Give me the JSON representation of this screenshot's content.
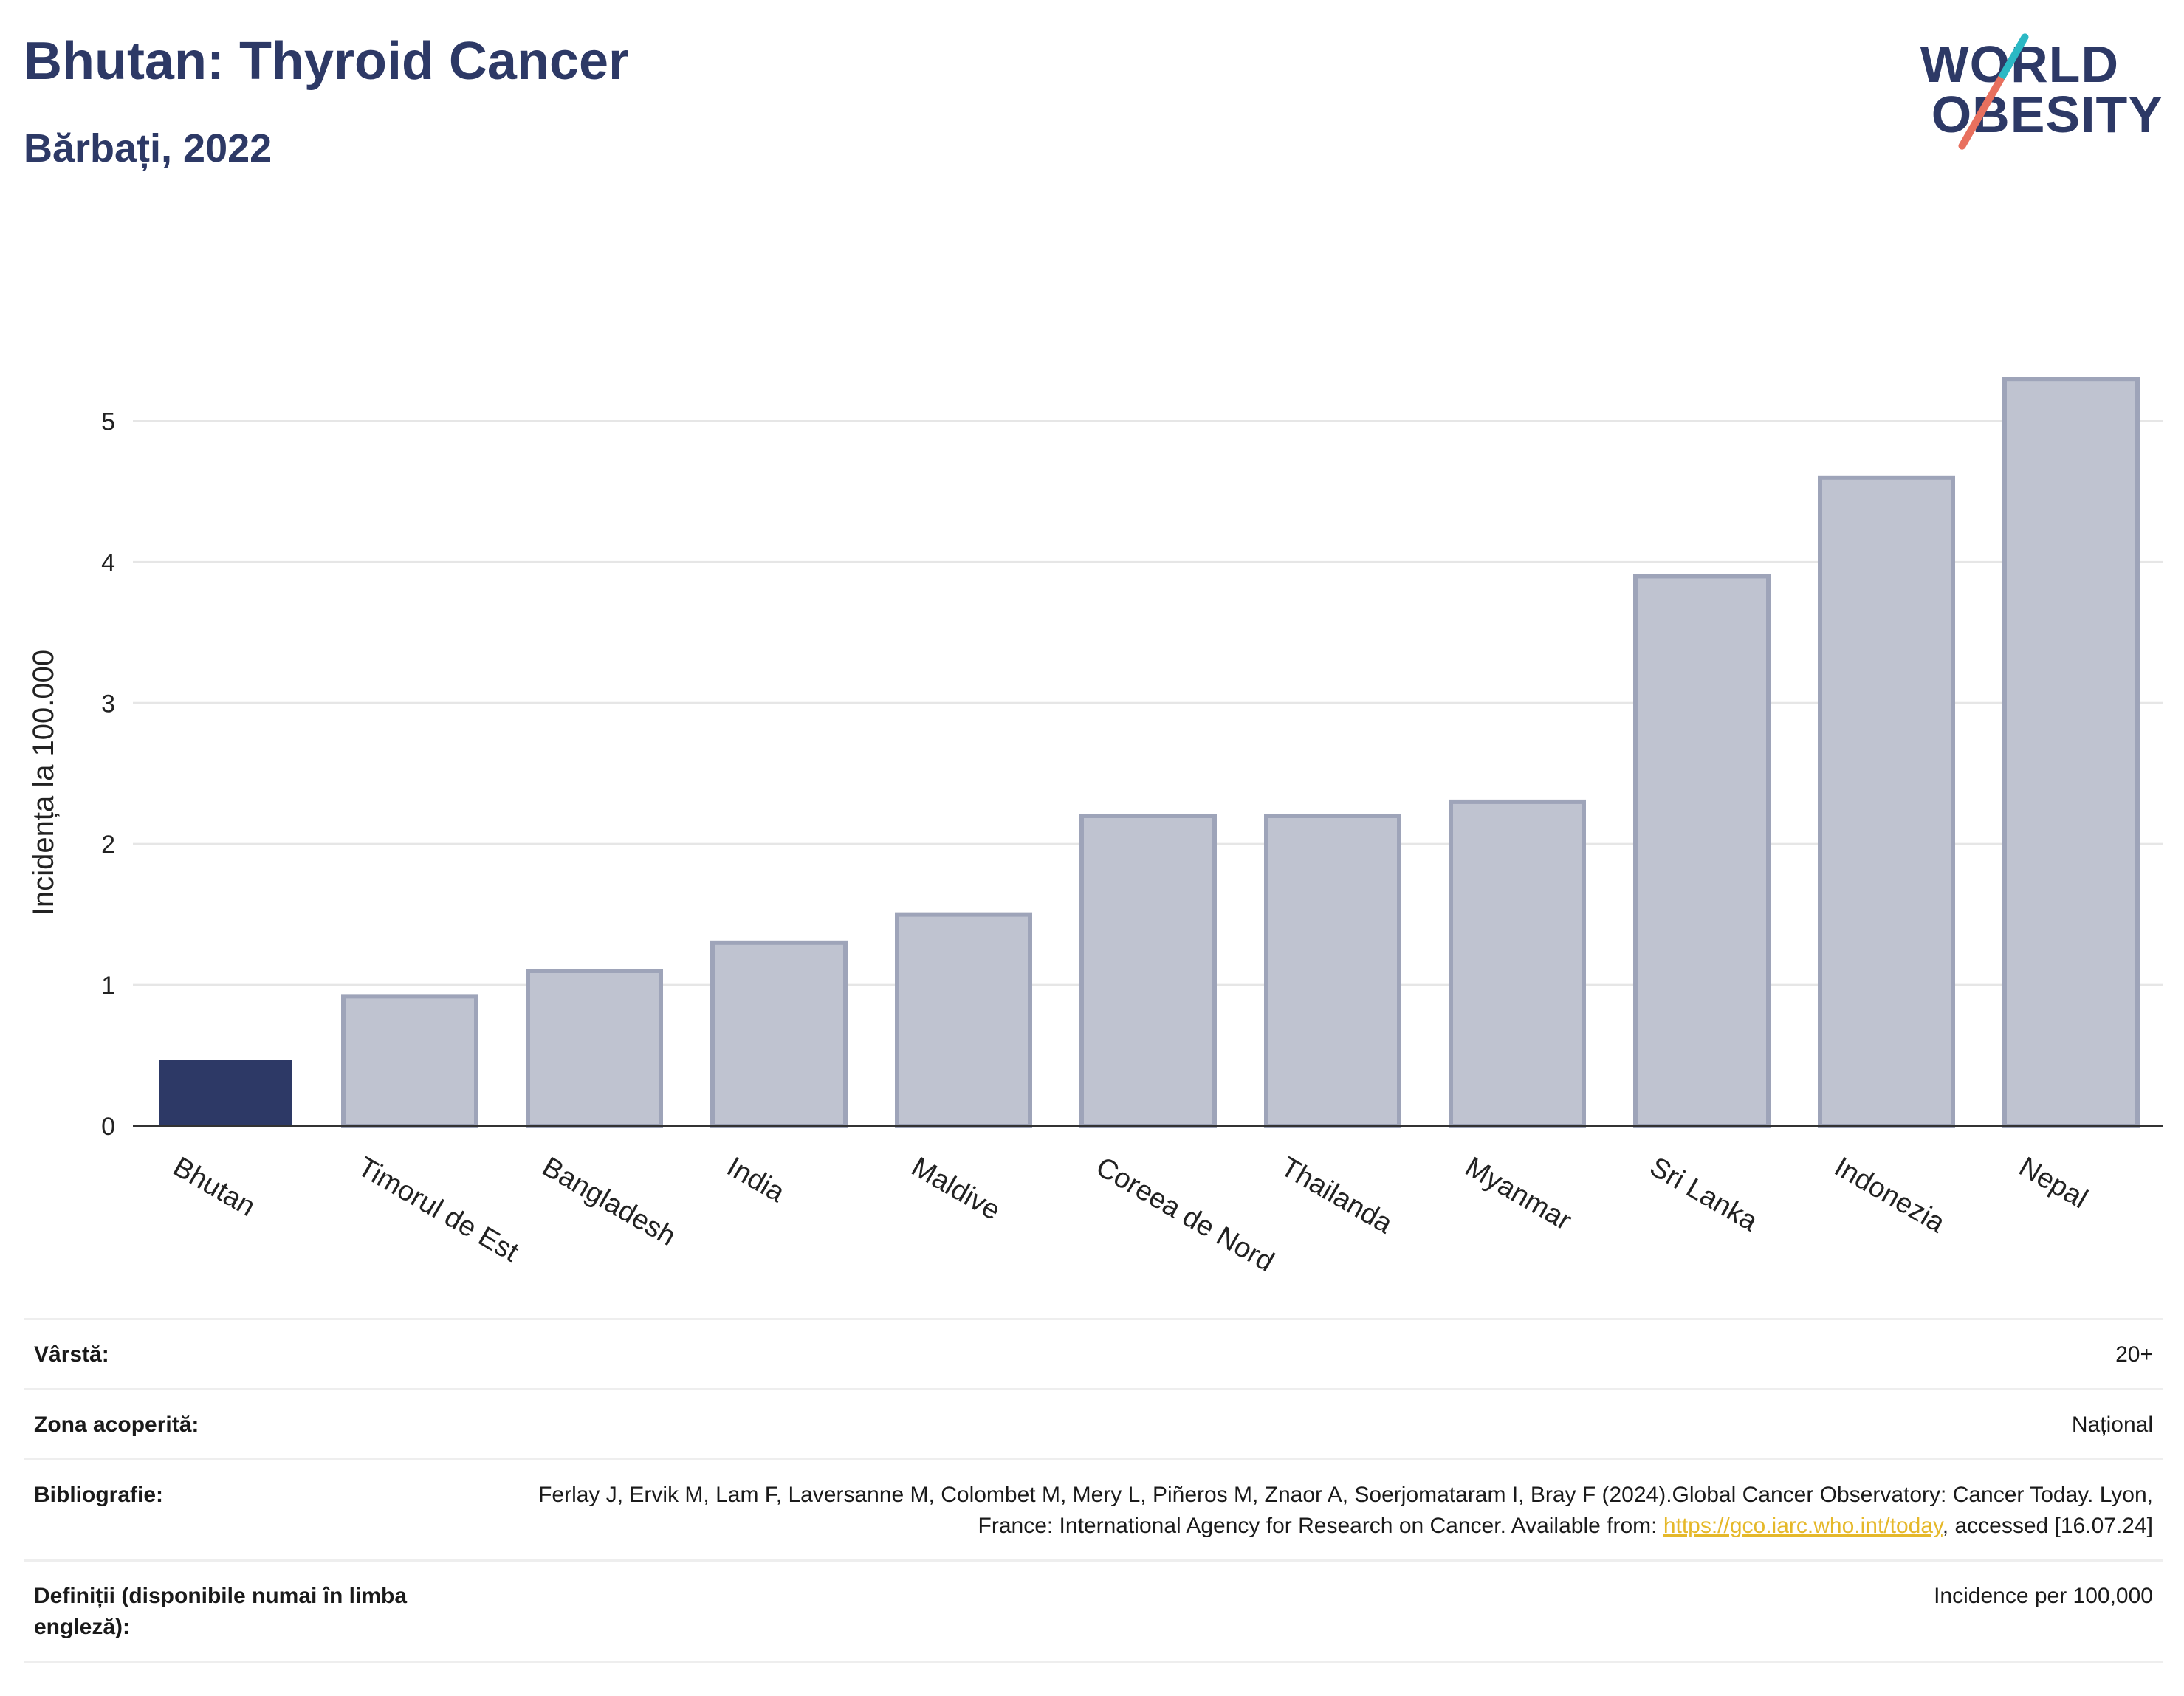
{
  "header": {
    "title": "Bhutan: Thyroid Cancer",
    "subtitle": "Bărbați, 2022"
  },
  "logo": {
    "line1": "WORLD",
    "line2": "OBESITY",
    "colors": {
      "text": "#2d3966",
      "accent_top": "#2bb8c4",
      "accent_bottom": "#e8705e"
    }
  },
  "colors": {
    "highlight_bar": "#2d3966",
    "other_bar_fill": "#bfc3d0",
    "other_bar_stroke": "#9ea4b9",
    "grid": "#e6e6e6",
    "axis": "#333333"
  },
  "chart_data": {
    "type": "bar",
    "title": "",
    "xlabel": "",
    "ylabel": "Incidența la 100.000",
    "categories": [
      "Bhutan",
      "Timorul de Est",
      "Bangladesh",
      "India",
      "Maldive",
      "Coreea de Nord",
      "Thailanda",
      "Myanmar",
      "Sri Lanka",
      "Indonezia",
      "Nepal"
    ],
    "values": [
      0.47,
      0.92,
      1.1,
      1.3,
      1.5,
      2.2,
      2.2,
      2.3,
      3.9,
      4.6,
      5.3
    ],
    "highlight": "Bhutan",
    "ylim": [
      0,
      5.5
    ],
    "yticks": [
      0,
      1,
      2,
      3,
      4,
      5
    ],
    "grid": true,
    "legend": "none"
  },
  "meta": {
    "age": {
      "label": "Vârstă:",
      "value": "20+"
    },
    "coverage": {
      "label": "Zona acoperită:",
      "value": "Național"
    },
    "bibliography": {
      "label": "Bibliografie:",
      "text_before": "Ferlay J, Ervik M, Lam F, Laversanne M, Colombet M, Mery L, Piñeros M, Znaor A, Soerjomataram I, Bray F (2024).Global Cancer Observatory: Cancer Today. Lyon, France: International Agency for Research on Cancer. Available from: ",
      "link": "https://gco.iarc.who.int/today",
      "text_after": ", accessed [16.07.24]"
    },
    "definitions": {
      "label": "Definiții (disponibile numai în limba engleză):",
      "value": "Incidence per 100,000"
    }
  }
}
